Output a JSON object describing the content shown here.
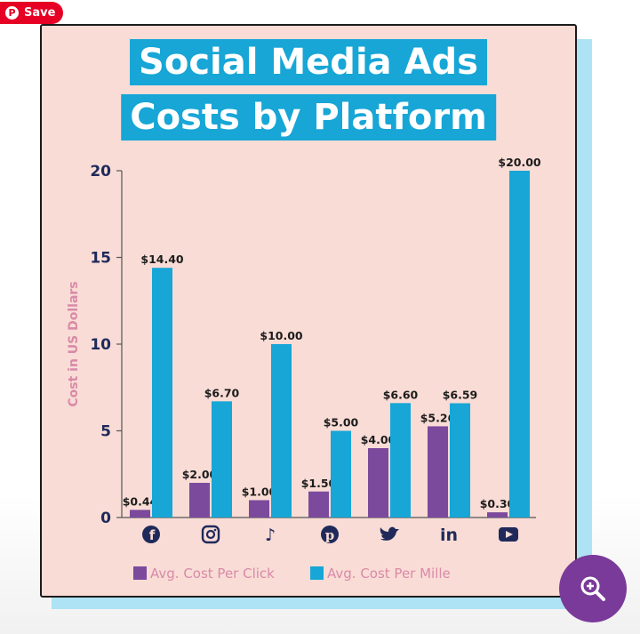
{
  "save_button": {
    "label": "Save",
    "icon": "pinterest-icon"
  },
  "zoom_button": {
    "icon": "zoom-in-icon"
  },
  "chart_data": {
    "type": "bar",
    "title_lines": [
      "Social Media Ads",
      "Costs by Platform"
    ],
    "xlabel": "",
    "ylabel": "Cost in US Dollars",
    "ylim": [
      0,
      20
    ],
    "yticks": [
      0,
      5,
      10,
      15,
      20
    ],
    "ytick_labels": [
      "0",
      "5",
      "10",
      "15",
      "20"
    ],
    "grid": false,
    "legend_position": "bottom",
    "categories": [
      "Facebook",
      "Instagram",
      "TikTok",
      "Pinterest",
      "Twitter",
      "LinkedIn",
      "YouTube"
    ],
    "category_icons": [
      "facebook-icon",
      "instagram-icon",
      "tiktok-icon",
      "pinterest-icon",
      "twitter-icon",
      "linkedin-icon",
      "youtube-icon"
    ],
    "series": [
      {
        "name": "Avg. Cost Per Click",
        "color": "#7b4a9c",
        "values": [
          0.44,
          2.0,
          1.0,
          1.5,
          4.0,
          5.26,
          0.3
        ],
        "labels": [
          "$0.44",
          "$2.00",
          "$1.00",
          "$1.50",
          "$4.00",
          "$5.26",
          "$0.30"
        ]
      },
      {
        "name": "Avg. Cost Per Mille",
        "color": "#17a6d6",
        "values": [
          14.4,
          6.7,
          10.0,
          5.0,
          6.6,
          6.59,
          20.0
        ],
        "labels": [
          "$14.40",
          "$6.70",
          "$10.00",
          "$5.00",
          "$6.60",
          "$6.59",
          "$20.00"
        ]
      }
    ],
    "colors": {
      "axis_text": "#1f2a5a",
      "ylabel_text": "#d98aa8",
      "legend_text": "#d98aa8",
      "icon": "#1f2a5a",
      "axis_line": "#555555"
    }
  }
}
